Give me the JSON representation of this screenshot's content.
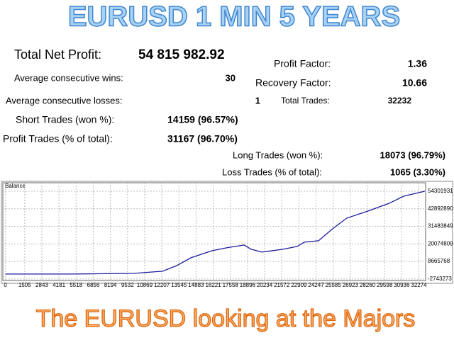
{
  "header": {
    "title": "EURUSD 1 MIN 5 YEARS"
  },
  "stats": [
    {
      "label": "Total Net Profit:",
      "value": "54 815 982.92"
    },
    {
      "label": "Average consecutive wins:",
      "value": "30"
    },
    {
      "label": "Average consecutive losses:",
      "value": "1"
    },
    {
      "label": "Short Trades (won %):",
      "value": "14159 (96.57%)"
    },
    {
      "label": "Profit Trades (% of total):",
      "value": "31167 (96.70%)"
    },
    {
      "label": "Profit Factor:",
      "value": "1.36"
    },
    {
      "label": "Recovery Factor:",
      "value": "10.66"
    },
    {
      "label": "Total Trades:",
      "value": "32232"
    },
    {
      "label": "Long Trades (won %):",
      "value": "18073 (96.79%)"
    },
    {
      "label": "Loss Trades (% of total):",
      "value": "1065 (3.30%)"
    }
  ],
  "chart_data": {
    "type": "line",
    "x": [
      0,
      5087,
      10063,
      12274,
      13380,
      14486,
      16145,
      17250,
      18633,
      19186,
      20015,
      21674,
      22780,
      23333,
      24438,
      25544,
      26650,
      28309,
      29968,
      31074,
      32732
    ],
    "series": [
      {
        "name": "Balance",
        "color": "#1a1a9c",
        "values": [
          480000,
          480000,
          940000,
          2320000,
          6000000,
          11060000,
          15660000,
          17500000,
          19340000,
          16580000,
          14740000,
          16580000,
          18420000,
          21180000,
          22100000,
          29920000,
          36820000,
          41420000,
          46480000,
          51080000,
          54300000
        ]
      }
    ],
    "xlim": [
      -200,
      32800
    ],
    "ylim": [
      -3700000,
      59800000
    ],
    "xticks": [
      0,
      1505,
      2843,
      4181,
      5518,
      6856,
      8194,
      9532,
      10869,
      12207,
      13545,
      14883,
      16221,
      17558,
      18896,
      20234,
      21572,
      22909,
      24247,
      25585,
      26923,
      28260,
      29598,
      30936,
      32274
    ],
    "yticks": [
      -2743273,
      8665768,
      20074809,
      31483849,
      42892890,
      54301931
    ],
    "grid": true
  },
  "footer": {
    "caption": "The EURUSD looking at the Majors"
  }
}
